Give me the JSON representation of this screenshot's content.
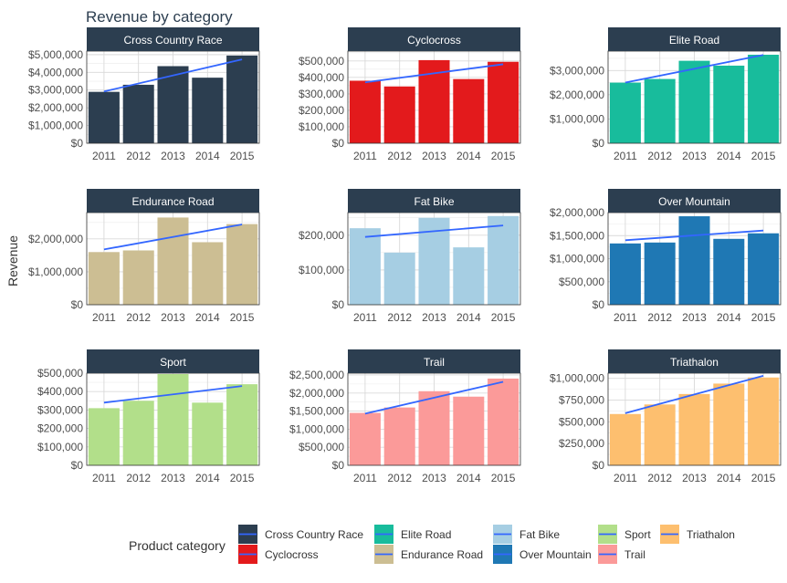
{
  "chart_data": {
    "type": "bar",
    "title": "Revenue by category",
    "ylabel": "Revenue",
    "legend_title": "Product category",
    "legend_position": "bottom",
    "grid": true,
    "categories": [
      "2011",
      "2012",
      "2013",
      "2014",
      "2015"
    ],
    "trend_color": "#3366ff",
    "strip_color": "#2c3e50",
    "panels": [
      {
        "name": "Cross Country Race",
        "color": "#2c3e50",
        "values": [
          2900000,
          3300000,
          4350000,
          3700000,
          4950000
        ],
        "ylim": [
          0,
          5200000
        ],
        "ticks": [
          0,
          1000000,
          2000000,
          3000000,
          4000000,
          5000000
        ],
        "tick_labels": [
          "$0",
          "$1,000,000",
          "$2,000,000",
          "$3,000,000",
          "$4,000,000",
          "$5,000,000"
        ],
        "trend": [
          2920000,
          4730000
        ]
      },
      {
        "name": "Cyclocross",
        "color": "#e31a1c",
        "values": [
          380000,
          345000,
          505000,
          390000,
          495000
        ],
        "ylim": [
          0,
          560000
        ],
        "ticks": [
          0,
          100000,
          200000,
          300000,
          400000,
          500000
        ],
        "tick_labels": [
          "$0",
          "$100,000",
          "$200,000",
          "$300,000",
          "$400,000",
          "$500,000"
        ],
        "trend": [
          370000,
          480000
        ]
      },
      {
        "name": "Elite Road",
        "color": "#18bc9c",
        "values": [
          2500000,
          2650000,
          3400000,
          3200000,
          3650000
        ],
        "ylim": [
          0,
          3800000
        ],
        "ticks": [
          0,
          1000000,
          2000000,
          3000000
        ],
        "tick_labels": [
          "$0",
          "$1,000,000",
          "$2,000,000",
          "$3,000,000"
        ],
        "trend": [
          2500000,
          3640000
        ]
      },
      {
        "name": "Endurance Road",
        "color": "#ccbe93",
        "values": [
          1600000,
          1650000,
          2650000,
          1900000,
          2450000
        ],
        "ylim": [
          0,
          2800000
        ],
        "ticks": [
          0,
          1000000,
          2000000
        ],
        "tick_labels": [
          "$0",
          "$1,000,000",
          "$2,000,000"
        ],
        "trend": [
          1680000,
          2440000
        ]
      },
      {
        "name": "Fat Bike",
        "color": "#a6cee3",
        "values": [
          220000,
          150000,
          250000,
          165000,
          255000
        ],
        "ylim": [
          0,
          265000
        ],
        "ticks": [
          0,
          100000,
          200000
        ],
        "tick_labels": [
          "$0",
          "$100,000",
          "$200,000"
        ],
        "trend": [
          195000,
          228000
        ]
      },
      {
        "name": "Over Mountain",
        "color": "#1f78b4",
        "values": [
          1330000,
          1350000,
          1920000,
          1430000,
          1550000
        ],
        "ylim": [
          0,
          2000000
        ],
        "ticks": [
          0,
          500000,
          1000000,
          1500000,
          2000000
        ],
        "tick_labels": [
          "$0",
          "$500,000",
          "$1,000,000",
          "$1,500,000",
          "$2,000,000"
        ],
        "trend": [
          1400000,
          1610000
        ]
      },
      {
        "name": "Sport",
        "color": "#b2df8a",
        "values": [
          310000,
          350000,
          495000,
          340000,
          440000
        ],
        "ylim": [
          0,
          500000
        ],
        "ticks": [
          0,
          100000,
          200000,
          300000,
          400000,
          500000
        ],
        "tick_labels": [
          "$0",
          "$100,000",
          "$200,000",
          "$300,000",
          "$400,000",
          "$500,000"
        ],
        "trend": [
          340000,
          430000
        ]
      },
      {
        "name": "Trail",
        "color": "#fb9a99",
        "values": [
          1450000,
          1600000,
          2050000,
          1900000,
          2400000
        ],
        "ylim": [
          0,
          2550000
        ],
        "ticks": [
          0,
          500000,
          1000000,
          1500000,
          2000000,
          2500000
        ],
        "tick_labels": [
          "$0",
          "$500,000",
          "$1,000,000",
          "$1,500,000",
          "$2,000,000",
          "$2,500,000"
        ],
        "trend": [
          1430000,
          2310000
        ]
      },
      {
        "name": "Triathalon",
        "color": "#fdbf6f",
        "values": [
          590000,
          700000,
          820000,
          940000,
          1010000
        ],
        "ylim": [
          0,
          1060000
        ],
        "ticks": [
          0,
          250000,
          500000,
          750000,
          1000000
        ],
        "tick_labels": [
          "$0",
          "$250,000",
          "$500,000",
          "$750,000",
          "$1,000,000"
        ],
        "trend": [
          600000,
          1030000
        ]
      }
    ],
    "legend_columns": [
      [
        "Cross Country Race",
        "Cyclocross"
      ],
      [
        "Elite Road",
        "Endurance Road"
      ],
      [
        "Fat Bike",
        "Over Mountain"
      ],
      [
        "Sport",
        "Trail"
      ],
      [
        "Triathalon"
      ]
    ]
  }
}
